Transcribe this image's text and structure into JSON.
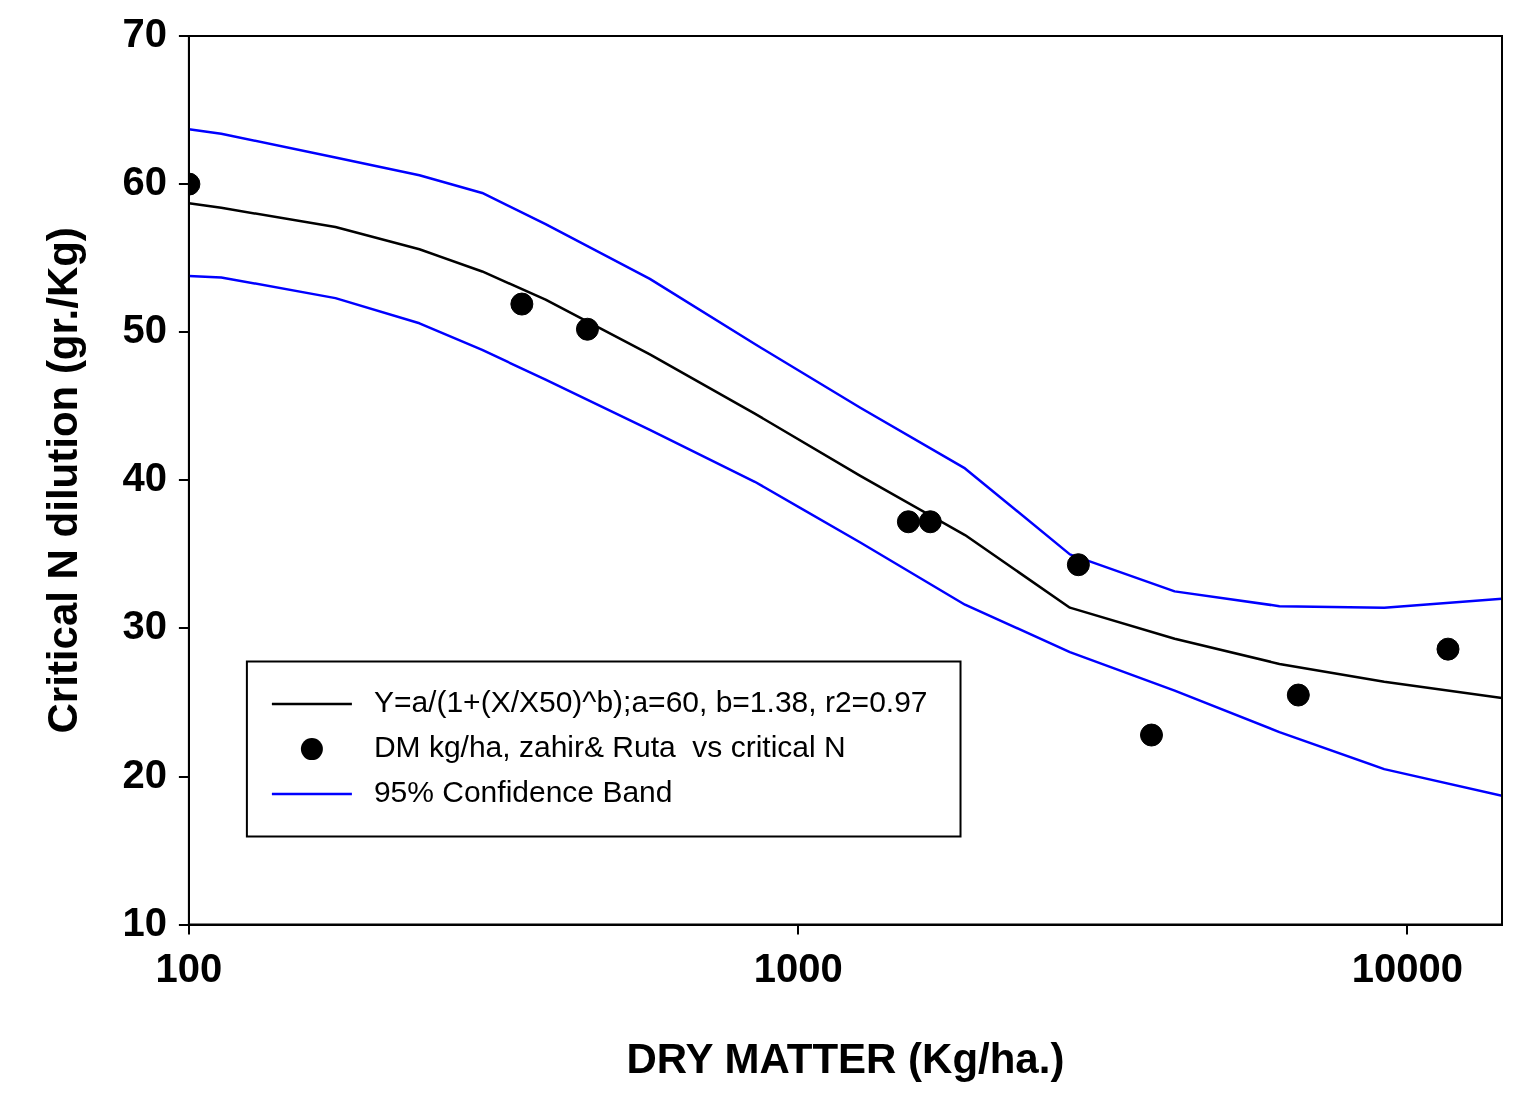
{
  "chart_data": {
    "type": "line",
    "xlabel": "DRY MATTER (Kg/ha.)",
    "ylabel": "Critical N dilution (gr./Kg)",
    "log": "x",
    "xlim": [
      100,
      14300
    ],
    "xticks": [
      100,
      1000,
      10000
    ],
    "ylim": [
      10,
      70
    ],
    "yticks": [
      10,
      20,
      30,
      40,
      50,
      60,
      70
    ],
    "grid": false,
    "legend": "bottom left",
    "marker": "none",
    "line_style": "solid",
    "x": [
      100,
      113,
      174,
      239,
      303,
      385,
      571,
      849,
      1265,
      1879,
      2793,
      4150,
      6166,
      9162,
      14300
    ],
    "series": [
      {
        "name": "Y=a/(1+(X/X50)^b);a=60, b=1.38, r2=0.97",
        "color": "#000000",
        "values": [
          58.7,
          58.4,
          57.1,
          55.6,
          54.1,
          52.2,
          48.5,
          44.5,
          40.3,
          36.3,
          31.4,
          29.3,
          27.6,
          26.4,
          25.3
        ]
      },
      {
        "name": "DM kg/ha, zahir& Ruta  vs critical N",
        "type": "scatter",
        "marker": "circle",
        "color": "#000000",
        "x": [
          100,
          352,
          451,
          1517,
          1648,
          2884,
          3802,
          6622,
          11660
        ],
        "values": [
          60,
          51.9,
          50.2,
          37.2,
          37.2,
          34.3,
          22.8,
          25.5,
          28.6
        ]
      },
      {
        "name": "95% Confidence Band",
        "color": "#0000ff",
        "values": [
          63.7,
          63.4,
          61.8,
          60.6,
          59.4,
          57.3,
          53.6,
          49.2,
          44.9,
          40.8,
          35.0,
          32.5,
          31.5,
          31.4,
          32.0
        ]
      },
      {
        "color": "#0000ff",
        "values": [
          53.8,
          53.7,
          52.3,
          50.6,
          48.8,
          46.8,
          43.4,
          39.9,
          35.8,
          31.6,
          28.4,
          25.8,
          23.0,
          20.5,
          18.7
        ]
      }
    ]
  }
}
